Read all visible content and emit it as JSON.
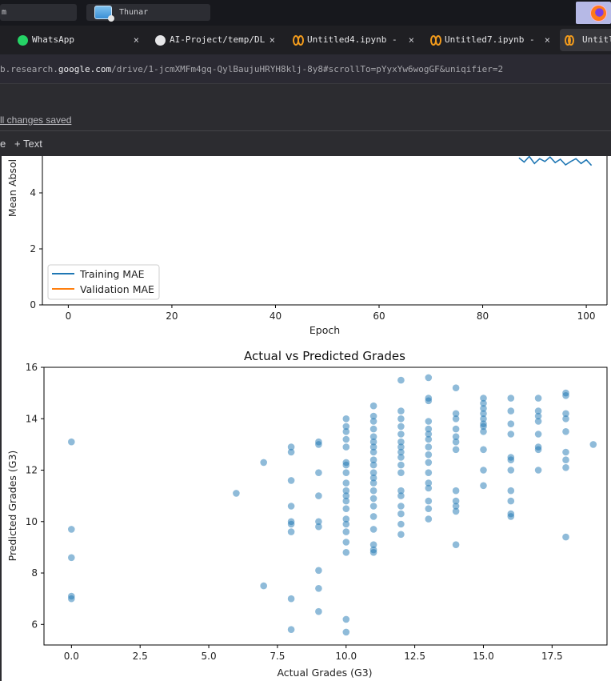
{
  "taskbar": {
    "left_window_label": "m",
    "thunar_label": "Thunar"
  },
  "tabs": [
    {
      "label": "WhatsApp",
      "close": "×",
      "icon": "whatsapp-icon"
    },
    {
      "label": "AI-Project/temp/DL",
      "close": "×",
      "icon": "github-icon"
    },
    {
      "label": "Untitled4.ipynb -",
      "close": "×",
      "icon": "colab-icon"
    },
    {
      "label": "Untitled7.ipynb -",
      "close": "×",
      "icon": "colab-icon"
    },
    {
      "label": "Untitl",
      "close": "",
      "icon": "colab-icon"
    }
  ],
  "url": {
    "prefix": "b.research.",
    "domain": "google.com",
    "path": "/drive/1-jcmXMFm4gq-QylBaujuHRYH8klj-8y8#scrollTo=pYyxYw6wogGF&uniqifier=2"
  },
  "colab": {
    "saved_status": "ll changes saved",
    "toolbar_e": "e",
    "add_text": "+ Text"
  },
  "colors": {
    "training": "#1f77b4",
    "validation": "#ff7f0e",
    "scatter": "#1f77b4"
  },
  "chart_data": [
    {
      "type": "line",
      "title": "",
      "xlabel": "Epoch",
      "ylabel": "Mean Absol",
      "xlim": [
        -5,
        104
      ],
      "x_ticks": [
        0,
        20,
        40,
        60,
        80,
        100
      ],
      "y_ticks": [
        0,
        2,
        4
      ],
      "y_visible_range": [
        0,
        5.2
      ],
      "legend_position": "lower-left",
      "series": [
        {
          "name": "Training MAE",
          "points": [
            [
              87,
              5.25
            ],
            [
              88,
              5.1
            ],
            [
              89,
              5.3
            ],
            [
              90,
              5.05
            ],
            [
              91,
              5.22
            ],
            [
              92,
              5.12
            ],
            [
              93,
              5.28
            ],
            [
              94,
              5.08
            ],
            [
              95,
              5.2
            ],
            [
              96,
              5.0
            ],
            [
              97,
              5.12
            ],
            [
              98,
              5.22
            ],
            [
              99,
              5.05
            ],
            [
              100,
              5.18
            ],
            [
              101,
              4.98
            ]
          ]
        },
        {
          "name": "Validation MAE",
          "points": []
        }
      ]
    },
    {
      "type": "scatter",
      "title": "Actual vs Predicted Grades",
      "xlabel": "Actual Grades (G3)",
      "ylabel": "Predicted Grades (G3)",
      "xlim": [
        -1,
        19.5
      ],
      "ylim": [
        5.2,
        16
      ],
      "x_ticks": [
        0.0,
        2.5,
        5.0,
        7.5,
        10.0,
        12.5,
        15.0,
        17.5
      ],
      "x_tick_labels": [
        "0.0",
        "2.5",
        "5.0",
        "7.5",
        "10.0",
        "12.5",
        "15.0",
        "17.5"
      ],
      "y_ticks": [
        6,
        8,
        10,
        12,
        14,
        16
      ],
      "points": [
        [
          0,
          13.1
        ],
        [
          0,
          9.7
        ],
        [
          0,
          8.6
        ],
        [
          0,
          7.1
        ],
        [
          0,
          7.0
        ],
        [
          6,
          11.1
        ],
        [
          7,
          12.3
        ],
        [
          7,
          7.5
        ],
        [
          8,
          12.9
        ],
        [
          8,
          12.7
        ],
        [
          8,
          11.6
        ],
        [
          8,
          10.6
        ],
        [
          8,
          10.0
        ],
        [
          8,
          9.9
        ],
        [
          8,
          9.6
        ],
        [
          8,
          7.0
        ],
        [
          8,
          5.8
        ],
        [
          9,
          13.1
        ],
        [
          9,
          13.0
        ],
        [
          9,
          11.9
        ],
        [
          9,
          11.0
        ],
        [
          9,
          10.0
        ],
        [
          9,
          9.8
        ],
        [
          9,
          8.1
        ],
        [
          9,
          7.4
        ],
        [
          9,
          6.5
        ],
        [
          10,
          14.0
        ],
        [
          10,
          13.7
        ],
        [
          10,
          13.5
        ],
        [
          10,
          13.2
        ],
        [
          10,
          12.9
        ],
        [
          10,
          12.3
        ],
        [
          10,
          12.2
        ],
        [
          10,
          11.9
        ],
        [
          10,
          11.5
        ],
        [
          10,
          11.2
        ],
        [
          10,
          11.0
        ],
        [
          10,
          10.8
        ],
        [
          10,
          10.5
        ],
        [
          10,
          10.1
        ],
        [
          10,
          9.9
        ],
        [
          10,
          9.6
        ],
        [
          10,
          9.2
        ],
        [
          10,
          8.8
        ],
        [
          10,
          6.2
        ],
        [
          10,
          5.7
        ],
        [
          11,
          14.5
        ],
        [
          11,
          14.1
        ],
        [
          11,
          13.9
        ],
        [
          11,
          13.6
        ],
        [
          11,
          13.3
        ],
        [
          11,
          13.1
        ],
        [
          11,
          12.9
        ],
        [
          11,
          12.7
        ],
        [
          11,
          12.4
        ],
        [
          11,
          12.2
        ],
        [
          11,
          11.9
        ],
        [
          11,
          11.7
        ],
        [
          11,
          11.5
        ],
        [
          11,
          11.2
        ],
        [
          11,
          10.9
        ],
        [
          11,
          10.6
        ],
        [
          11,
          10.2
        ],
        [
          11,
          9.7
        ],
        [
          11,
          9.1
        ],
        [
          11,
          8.9
        ],
        [
          11,
          8.8
        ],
        [
          12,
          15.5
        ],
        [
          12,
          14.3
        ],
        [
          12,
          14.0
        ],
        [
          12,
          13.7
        ],
        [
          12,
          13.4
        ],
        [
          12,
          13.1
        ],
        [
          12,
          12.9
        ],
        [
          12,
          12.7
        ],
        [
          12,
          12.5
        ],
        [
          12,
          12.2
        ],
        [
          12,
          11.9
        ],
        [
          12,
          11.2
        ],
        [
          12,
          11.0
        ],
        [
          12,
          10.6
        ],
        [
          12,
          10.3
        ],
        [
          12,
          9.9
        ],
        [
          12,
          9.5
        ],
        [
          13,
          15.6
        ],
        [
          13,
          14.8
        ],
        [
          13,
          14.7
        ],
        [
          13,
          13.9
        ],
        [
          13,
          13.6
        ],
        [
          13,
          13.4
        ],
        [
          13,
          13.2
        ],
        [
          13,
          12.9
        ],
        [
          13,
          12.6
        ],
        [
          13,
          12.3
        ],
        [
          13,
          11.9
        ],
        [
          13,
          11.5
        ],
        [
          13,
          11.3
        ],
        [
          13,
          10.8
        ],
        [
          13,
          10.5
        ],
        [
          13,
          10.1
        ],
        [
          14,
          15.2
        ],
        [
          14,
          14.2
        ],
        [
          14,
          14.0
        ],
        [
          14,
          13.6
        ],
        [
          14,
          13.3
        ],
        [
          14,
          13.1
        ],
        [
          14,
          12.8
        ],
        [
          14,
          11.2
        ],
        [
          14,
          10.8
        ],
        [
          14,
          10.6
        ],
        [
          14,
          10.4
        ],
        [
          14,
          9.1
        ],
        [
          15,
          14.8
        ],
        [
          15,
          14.6
        ],
        [
          15,
          14.4
        ],
        [
          15,
          14.2
        ],
        [
          15,
          14.0
        ],
        [
          15,
          13.8
        ],
        [
          15,
          13.7
        ],
        [
          15,
          13.5
        ],
        [
          15,
          12.8
        ],
        [
          15,
          12.0
        ],
        [
          15,
          11.4
        ],
        [
          16,
          14.8
        ],
        [
          16,
          14.3
        ],
        [
          16,
          13.8
        ],
        [
          16,
          13.4
        ],
        [
          16,
          12.5
        ],
        [
          16,
          12.4
        ],
        [
          16,
          12.0
        ],
        [
          16,
          11.2
        ],
        [
          16,
          10.8
        ],
        [
          16,
          10.3
        ],
        [
          16,
          10.2
        ],
        [
          17,
          14.8
        ],
        [
          17,
          14.3
        ],
        [
          17,
          14.1
        ],
        [
          17,
          13.9
        ],
        [
          17,
          13.4
        ],
        [
          17,
          12.9
        ],
        [
          17,
          12.8
        ],
        [
          17,
          12.0
        ],
        [
          18,
          15.0
        ],
        [
          18,
          14.9
        ],
        [
          18,
          14.2
        ],
        [
          18,
          14.0
        ],
        [
          18,
          13.5
        ],
        [
          18,
          12.7
        ],
        [
          18,
          12.4
        ],
        [
          18,
          12.1
        ],
        [
          18,
          9.4
        ],
        [
          19,
          13.0
        ]
      ]
    }
  ]
}
